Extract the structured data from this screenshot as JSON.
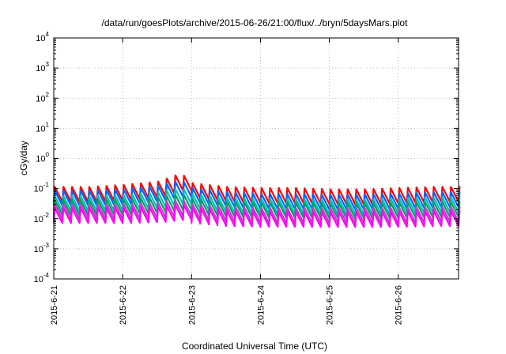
{
  "chart_data": {
    "type": "line",
    "title": "/data/run/goesPlots/archive/2015-06-26/21:00/flux/../bryn/5daysMars.plot",
    "xlabel": "Coordinated Universal Time (UTC)",
    "ylabel": "cGy/day",
    "x_axis": {
      "start": "2015-06-21",
      "end": "2015-06-26T21:00",
      "ticks": [
        "2015-6-21",
        "2015-6-22",
        "2015-6-23",
        "2015-6-24",
        "2015-6-25",
        "2015-6-26"
      ]
    },
    "y_axis": {
      "scale": "log",
      "ylim": [
        0.0001,
        10000
      ],
      "ticks": [
        {
          "base": "10",
          "exp": "-4"
        },
        {
          "base": "10",
          "exp": "-3"
        },
        {
          "base": "10",
          "exp": "-2"
        },
        {
          "base": "10",
          "exp": "-1"
        },
        {
          "base": "10",
          "exp": "0"
        },
        {
          "base": "10",
          "exp": "1"
        },
        {
          "base": "10",
          "exp": "2"
        },
        {
          "base": "10",
          "exp": "3"
        },
        {
          "base": "10",
          "exp": "4"
        }
      ]
    },
    "grid": true,
    "sawtooth_period_hours": 3,
    "series": [
      {
        "color": "#ff0000",
        "baseline": [
          [
            "2015-06-21T00:00",
            0.06
          ],
          [
            "2015-06-21T12:00",
            0.06
          ],
          [
            "2015-06-22T00:00",
            0.07
          ],
          [
            "2015-06-22T12:00",
            0.09
          ],
          [
            "2015-06-22T20:00",
            0.17
          ],
          [
            "2015-06-23T00:00",
            0.08
          ],
          [
            "2015-06-23T12:00",
            0.06
          ],
          [
            "2015-06-24T00:00",
            0.055
          ],
          [
            "2015-06-24T12:00",
            0.055
          ],
          [
            "2015-06-25T00:00",
            0.05
          ],
          [
            "2015-06-25T12:00",
            0.05
          ],
          [
            "2015-06-26T00:00",
            0.055
          ],
          [
            "2015-06-26T12:00",
            0.06
          ],
          [
            "2015-06-26T21:00",
            0.06
          ]
        ]
      },
      {
        "color": "#0066ff",
        "baseline": [
          [
            "2015-06-21T00:00",
            0.045
          ],
          [
            "2015-06-21T12:00",
            0.045
          ],
          [
            "2015-06-22T00:00",
            0.05
          ],
          [
            "2015-06-22T12:00",
            0.065
          ],
          [
            "2015-06-22T20:00",
            0.1
          ],
          [
            "2015-06-23T00:00",
            0.055
          ],
          [
            "2015-06-23T12:00",
            0.04
          ],
          [
            "2015-06-24T00:00",
            0.035
          ],
          [
            "2015-06-24T12:00",
            0.035
          ],
          [
            "2015-06-25T00:00",
            0.033
          ],
          [
            "2015-06-25T12:00",
            0.034
          ],
          [
            "2015-06-26T00:00",
            0.036
          ],
          [
            "2015-06-26T12:00",
            0.04
          ],
          [
            "2015-06-26T21:00",
            0.04
          ]
        ]
      },
      {
        "color": "#00c0c0",
        "baseline": [
          [
            "2015-06-21T00:00",
            0.03
          ],
          [
            "2015-06-21T12:00",
            0.03
          ],
          [
            "2015-06-22T00:00",
            0.032
          ],
          [
            "2015-06-22T12:00",
            0.04
          ],
          [
            "2015-06-22T20:00",
            0.055
          ],
          [
            "2015-06-23T00:00",
            0.035
          ],
          [
            "2015-06-23T12:00",
            0.026
          ],
          [
            "2015-06-24T00:00",
            0.024
          ],
          [
            "2015-06-24T12:00",
            0.024
          ],
          [
            "2015-06-25T00:00",
            0.023
          ],
          [
            "2015-06-25T12:00",
            0.023
          ],
          [
            "2015-06-26T00:00",
            0.025
          ],
          [
            "2015-06-26T12:00",
            0.027
          ],
          [
            "2015-06-26T21:00",
            0.027
          ]
        ]
      },
      {
        "color": "#00a060",
        "baseline": [
          [
            "2015-06-21T00:00",
            0.022
          ],
          [
            "2015-06-21T12:00",
            0.022
          ],
          [
            "2015-06-22T00:00",
            0.023
          ],
          [
            "2015-06-22T12:00",
            0.027
          ],
          [
            "2015-06-22T20:00",
            0.035
          ],
          [
            "2015-06-23T00:00",
            0.024
          ],
          [
            "2015-06-23T12:00",
            0.019
          ],
          [
            "2015-06-24T00:00",
            0.018
          ],
          [
            "2015-06-24T12:00",
            0.018
          ],
          [
            "2015-06-25T00:00",
            0.017
          ],
          [
            "2015-06-25T12:00",
            0.017
          ],
          [
            "2015-06-26T00:00",
            0.018
          ],
          [
            "2015-06-26T12:00",
            0.019
          ],
          [
            "2015-06-26T21:00",
            0.019
          ]
        ]
      },
      {
        "color": "#c040c0",
        "baseline": [
          [
            "2015-06-21T00:00",
            0.016
          ],
          [
            "2015-06-21T12:00",
            0.016
          ],
          [
            "2015-06-22T00:00",
            0.016
          ],
          [
            "2015-06-22T12:00",
            0.018
          ],
          [
            "2015-06-22T20:00",
            0.022
          ],
          [
            "2015-06-23T00:00",
            0.016
          ],
          [
            "2015-06-23T12:00",
            0.013
          ],
          [
            "2015-06-24T00:00",
            0.012
          ],
          [
            "2015-06-24T12:00",
            0.012
          ],
          [
            "2015-06-25T00:00",
            0.012
          ],
          [
            "2015-06-25T12:00",
            0.012
          ],
          [
            "2015-06-26T00:00",
            0.012
          ],
          [
            "2015-06-26T12:00",
            0.013
          ],
          [
            "2015-06-26T21:00",
            0.013
          ]
        ]
      },
      {
        "color": "#ff00ff",
        "baseline": [
          [
            "2015-06-21T00:00",
            0.012
          ],
          [
            "2015-06-21T12:00",
            0.012
          ],
          [
            "2015-06-22T00:00",
            0.012
          ],
          [
            "2015-06-22T12:00",
            0.013
          ],
          [
            "2015-06-22T20:00",
            0.016
          ],
          [
            "2015-06-23T00:00",
            0.012
          ],
          [
            "2015-06-23T12:00",
            0.0095
          ],
          [
            "2015-06-24T00:00",
            0.009
          ],
          [
            "2015-06-24T12:00",
            0.009
          ],
          [
            "2015-06-25T00:00",
            0.0088
          ],
          [
            "2015-06-25T12:00",
            0.0088
          ],
          [
            "2015-06-26T00:00",
            0.009
          ],
          [
            "2015-06-26T12:00",
            0.0095
          ],
          [
            "2015-06-26T21:00",
            0.0095
          ]
        ]
      }
    ]
  }
}
